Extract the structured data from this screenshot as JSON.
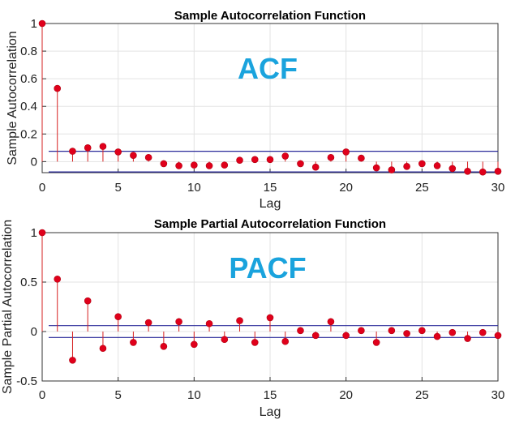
{
  "colors": {
    "stem": "#d62020",
    "marker": "#e0001b",
    "bound": "#2a2a9a",
    "grid": "#e3e3e3",
    "annotation": "#1aa3dd"
  },
  "chart_data": [
    {
      "type": "stem",
      "title": "Sample Autocorrelation Function",
      "xlabel": "Lag",
      "ylabel": "Sample Autocorrelation",
      "annotation": "ACF",
      "xlim": [
        0,
        30
      ],
      "ylim": [
        -0.08,
        1.0
      ],
      "xticks": [
        "0",
        "5",
        "10",
        "15",
        "20",
        "25",
        "30"
      ],
      "yticks": [
        "0",
        "0.2",
        "0.4",
        "0.6",
        "0.8",
        "1"
      ],
      "grid": true,
      "confidence_bound": 0.075,
      "x": [
        0,
        1,
        2,
        3,
        4,
        5,
        6,
        7,
        8,
        9,
        10,
        11,
        12,
        13,
        14,
        15,
        16,
        17,
        18,
        19,
        20,
        21,
        22,
        23,
        24,
        25,
        26,
        27,
        28,
        29,
        30
      ],
      "values": [
        1.0,
        0.53,
        0.075,
        0.1,
        0.11,
        0.07,
        0.045,
        0.03,
        -0.015,
        -0.03,
        -0.025,
        -0.03,
        -0.025,
        0.01,
        0.015,
        0.015,
        0.04,
        -0.015,
        -0.04,
        0.03,
        0.07,
        0.025,
        -0.045,
        -0.06,
        -0.035,
        -0.015,
        -0.03,
        -0.05,
        -0.07,
        -0.075,
        -0.07
      ]
    },
    {
      "type": "stem",
      "title": "Sample Partial Autocorrelation Function",
      "xlabel": "Lag",
      "ylabel": "Sample Partial Autocorrelation",
      "annotation": "PACF",
      "xlim": [
        0,
        30
      ],
      "ylim": [
        -0.5,
        1.0
      ],
      "xticks": [
        "0",
        "5",
        "10",
        "15",
        "20",
        "25",
        "30"
      ],
      "yticks": [
        "-0.5",
        "0",
        "0.5",
        "1"
      ],
      "grid": true,
      "confidence_bound": 0.06,
      "x": [
        0,
        1,
        2,
        3,
        4,
        5,
        6,
        7,
        8,
        9,
        10,
        11,
        12,
        13,
        14,
        15,
        16,
        17,
        18,
        19,
        20,
        21,
        22,
        23,
        24,
        25,
        26,
        27,
        28,
        29,
        30
      ],
      "values": [
        1.0,
        0.53,
        -0.29,
        0.31,
        -0.17,
        0.15,
        -0.11,
        0.09,
        -0.15,
        0.1,
        -0.13,
        0.08,
        -0.08,
        0.11,
        -0.11,
        0.14,
        -0.1,
        0.01,
        -0.04,
        0.1,
        -0.04,
        0.01,
        -0.11,
        0.01,
        -0.02,
        0.01,
        -0.05,
        -0.01,
        -0.07,
        -0.01,
        -0.04
      ]
    }
  ]
}
